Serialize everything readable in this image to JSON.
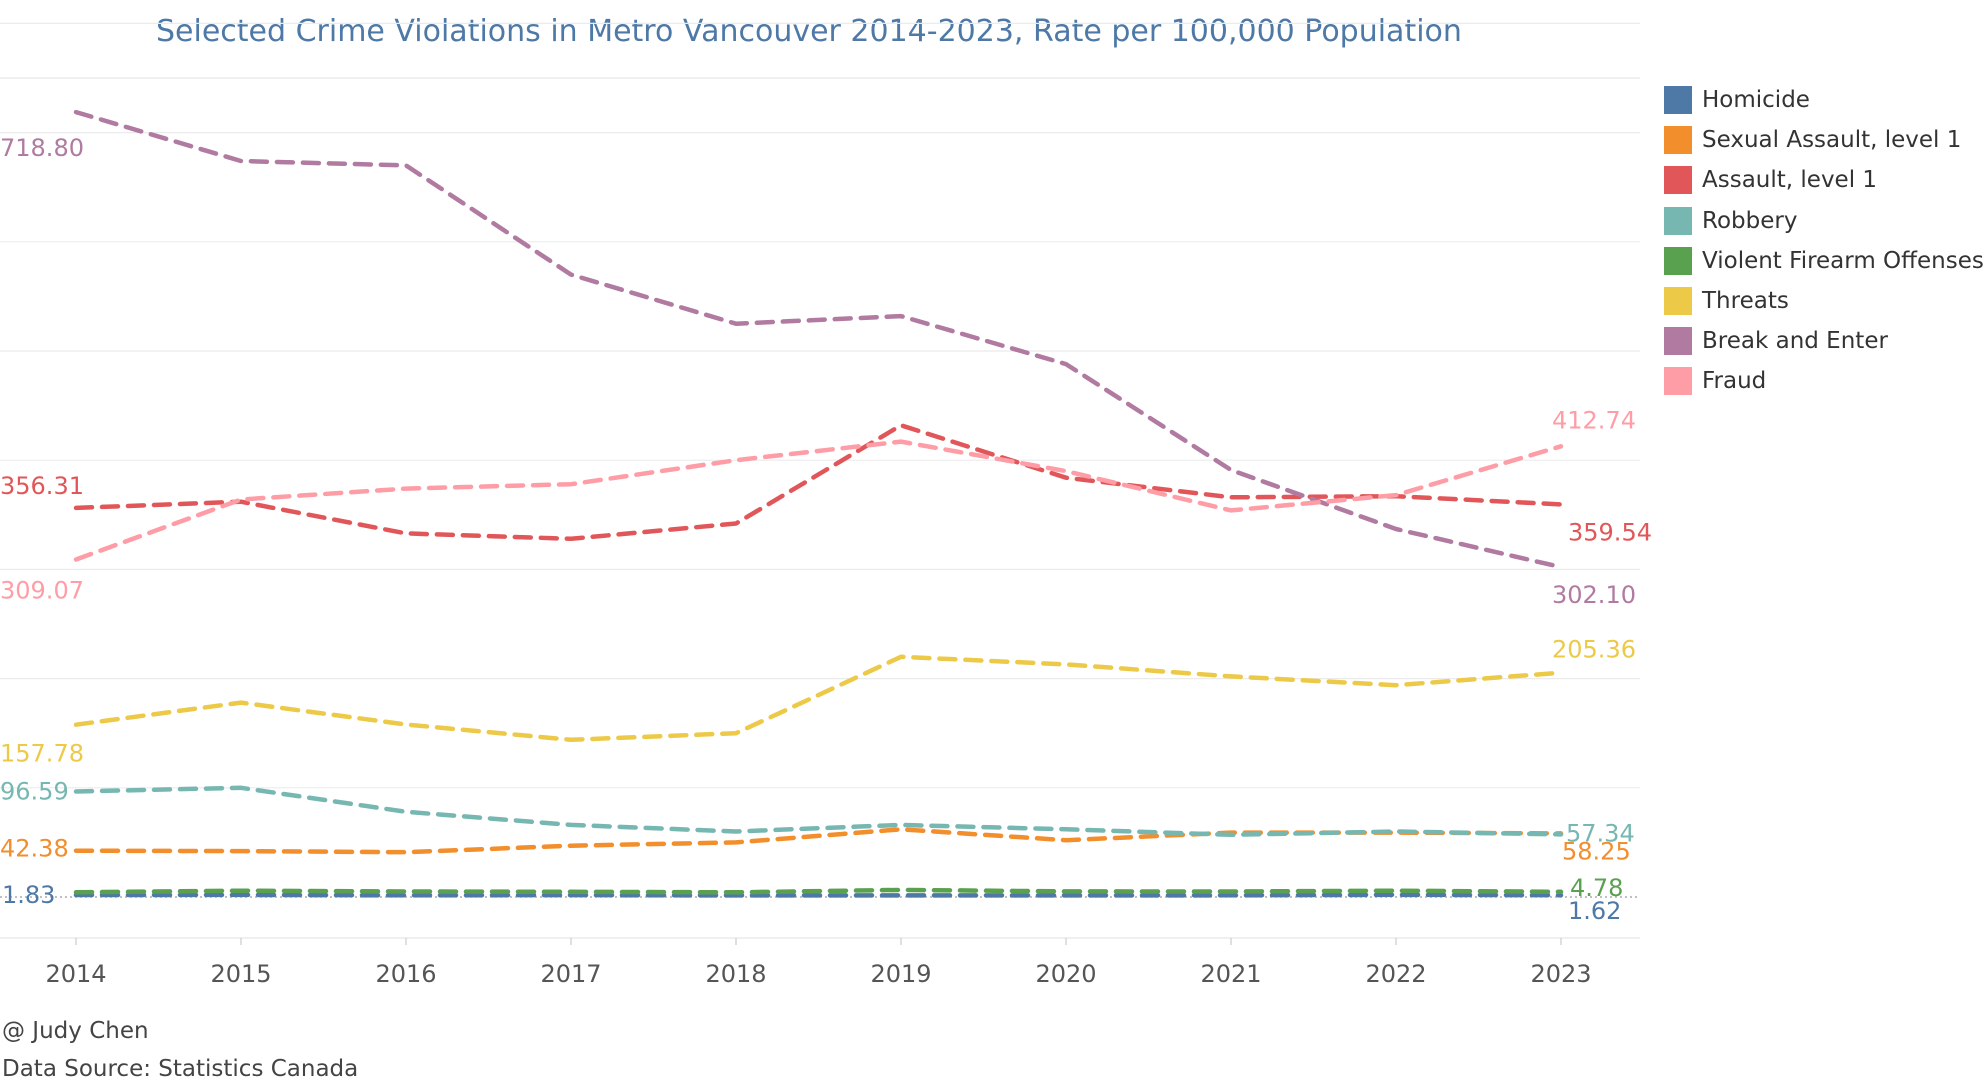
{
  "chart_data": {
    "type": "line",
    "title": "Selected Crime Violations  in Metro Vancouver 2014-2023,  Rate per 100,000 Population",
    "xlabel": "",
    "ylabel": "",
    "categories": [
      "2014",
      "2015",
      "2016",
      "2017",
      "2018",
      "2019",
      "2020",
      "2021",
      "2022",
      "2023"
    ],
    "ylim": [
      -40,
      800
    ],
    "grid": true,
    "line_style": "dashed",
    "legend_position": "right",
    "series": [
      {
        "name": "Homicide",
        "color": "#4e79a7",
        "values": [
          1.83,
          1.9,
          1.6,
          1.7,
          1.5,
          1.5,
          1.5,
          1.6,
          2.0,
          1.62
        ],
        "labels": [
          {
            "index": 0,
            "text": "1.83"
          },
          {
            "index": 9,
            "text": "1.62"
          }
        ]
      },
      {
        "name": "Sexual Assault, level 1",
        "color": "#f28e2b",
        "values": [
          42.38,
          42.0,
          41.0,
          47.0,
          50.0,
          62.0,
          52.0,
          59.0,
          59.0,
          58.25
        ],
        "labels": [
          {
            "index": 0,
            "text": "42.38"
          },
          {
            "index": 9,
            "text": "58.25"
          }
        ]
      },
      {
        "name": "Assault, level 1",
        "color": "#e15759",
        "values": [
          356.31,
          362.0,
          333.0,
          328.0,
          342.0,
          432.0,
          384.0,
          366.0,
          367.0,
          359.54
        ],
        "labels": [
          {
            "index": 0,
            "text": "356.31"
          },
          {
            "index": 9,
            "text": "359.54"
          }
        ]
      },
      {
        "name": "Robbery",
        "color": "#76b7b2",
        "values": [
          96.59,
          100.0,
          78.0,
          66.0,
          60.0,
          66.0,
          62.0,
          57.0,
          60.0,
          57.34
        ],
        "labels": [
          {
            "index": 0,
            "text": "96.59"
          },
          {
            "index": 9,
            "text": "57.34"
          }
        ]
      },
      {
        "name": "Violent Firearm Offenses",
        "color": "#59a14f",
        "values": [
          4.3,
          5.8,
          5.0,
          4.8,
          4.3,
          6.5,
          5.1,
          5.0,
          5.8,
          4.78
        ],
        "labels": [
          {
            "index": 9,
            "text": "4.78"
          }
        ]
      },
      {
        "name": "Threats",
        "color": "#edc948",
        "values": [
          157.78,
          178.0,
          158.0,
          144.0,
          150.0,
          220.0,
          213.0,
          202.0,
          194.0,
          205.36
        ],
        "labels": [
          {
            "index": 0,
            "text": "157.78"
          },
          {
            "index": 9,
            "text": "205.36"
          }
        ]
      },
      {
        "name": "Break and Enter",
        "color": "#b07aa1",
        "values": [
          718.8,
          674.0,
          670.0,
          570.0,
          525.0,
          532.0,
          488.0,
          391.0,
          337.0,
          302.1
        ],
        "labels": [
          {
            "index": 0,
            "text": "718.80"
          },
          {
            "index": 9,
            "text": "302.10"
          }
        ]
      },
      {
        "name": "Fraud",
        "color": "#ff9da7",
        "values": [
          309.07,
          364.0,
          374.0,
          378.0,
          400.0,
          417.0,
          390.0,
          354.0,
          368.0,
          412.74
        ],
        "labels": [
          {
            "index": 0,
            "text": "309.07"
          },
          {
            "index": 9,
            "text": "412.74"
          }
        ]
      }
    ],
    "reference_line": {
      "value": 0,
      "style": "dotted"
    }
  },
  "credits": {
    "author": "@ Judy Chen",
    "source": "Data Source: Statistics Canada"
  }
}
